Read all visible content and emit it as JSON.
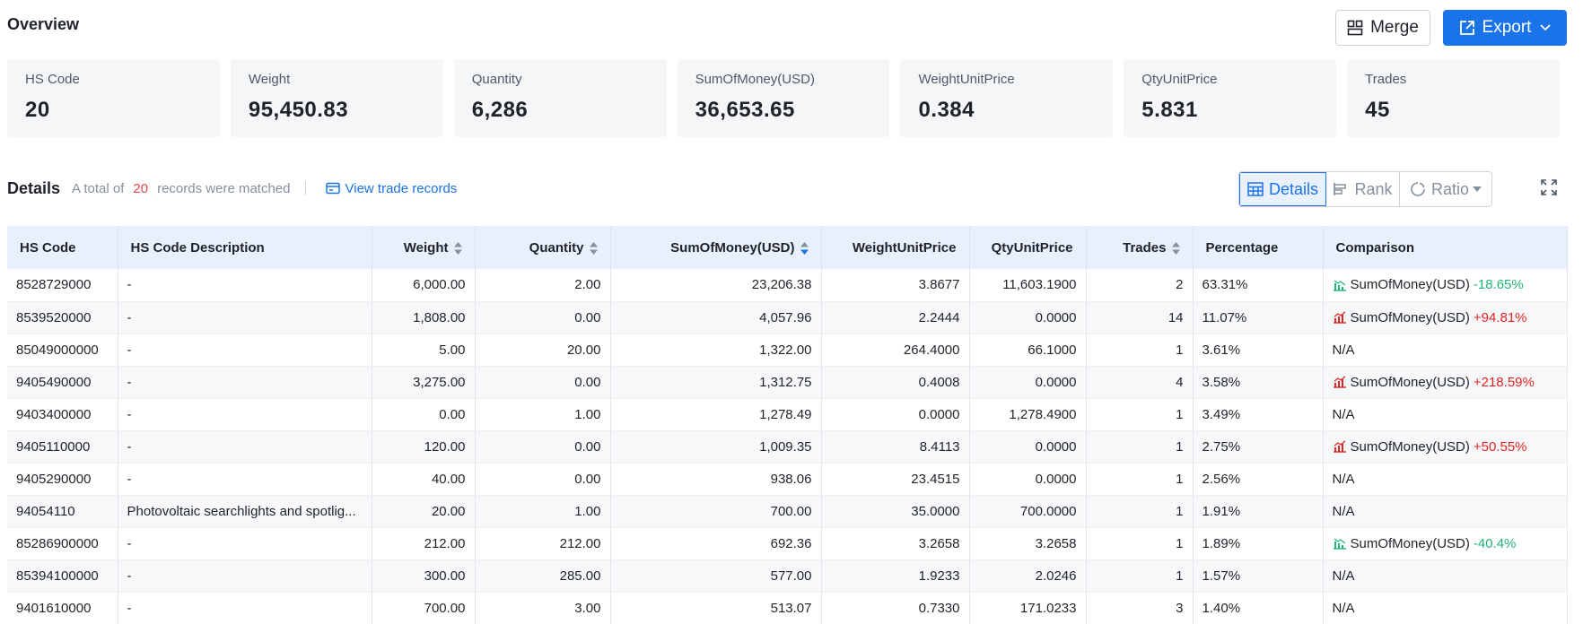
{
  "overview": {
    "title": "Overview",
    "merge_label": "Merge",
    "export_label": "Export"
  },
  "cards": [
    {
      "label": "HS Code",
      "value": "20"
    },
    {
      "label": "Weight",
      "value": "95,450.83"
    },
    {
      "label": "Quantity",
      "value": "6,286"
    },
    {
      "label": "SumOfMoney(USD)",
      "value": "36,653.65"
    },
    {
      "label": "WeightUnitPrice",
      "value": "0.384"
    },
    {
      "label": "QtyUnitPrice",
      "value": "5.831"
    },
    {
      "label": "Trades",
      "value": "45"
    }
  ],
  "details": {
    "title": "Details",
    "prefix": "A total of",
    "count": "20",
    "suffix": "records were matched",
    "view_link": "View trade records",
    "views": {
      "details": "Details",
      "rank": "Rank",
      "ratio": "Ratio"
    }
  },
  "table": {
    "columns": [
      "HS Code",
      "HS Code Description",
      "Weight",
      "Quantity",
      "SumOfMoney(USD)",
      "WeightUnitPrice",
      "QtyUnitPrice",
      "Trades",
      "Percentage",
      "Comparison"
    ],
    "rows": [
      {
        "hs": "8528729000",
        "desc": "-",
        "weight": "6,000.00",
        "qty": "2.00",
        "sum": "23,206.38",
        "wup": "3.8677",
        "qup": "11,603.1900",
        "trades": "2",
        "pct": "63.31%",
        "cmp_label": "SumOfMoney(USD)",
        "cmp_val": "-18.65%",
        "cmp_dir": "down"
      },
      {
        "hs": "8539520000",
        "desc": "-",
        "weight": "1,808.00",
        "qty": "0.00",
        "sum": "4,057.96",
        "wup": "2.2444",
        "qup": "0.0000",
        "trades": "14",
        "pct": "11.07%",
        "cmp_label": "SumOfMoney(USD)",
        "cmp_val": "+94.81%",
        "cmp_dir": "up"
      },
      {
        "hs": "85049000000",
        "desc": "-",
        "weight": "5.00",
        "qty": "20.00",
        "sum": "1,322.00",
        "wup": "264.4000",
        "qup": "66.1000",
        "trades": "1",
        "pct": "3.61%",
        "cmp_label": "N/A",
        "cmp_val": "",
        "cmp_dir": "na"
      },
      {
        "hs": "9405490000",
        "desc": "-",
        "weight": "3,275.00",
        "qty": "0.00",
        "sum": "1,312.75",
        "wup": "0.4008",
        "qup": "0.0000",
        "trades": "4",
        "pct": "3.58%",
        "cmp_label": "SumOfMoney(USD)",
        "cmp_val": "+218.59%",
        "cmp_dir": "up"
      },
      {
        "hs": "9403400000",
        "desc": "-",
        "weight": "0.00",
        "qty": "1.00",
        "sum": "1,278.49",
        "wup": "0.0000",
        "qup": "1,278.4900",
        "trades": "1",
        "pct": "3.49%",
        "cmp_label": "N/A",
        "cmp_val": "",
        "cmp_dir": "na"
      },
      {
        "hs": "9405110000",
        "desc": "-",
        "weight": "120.00",
        "qty": "0.00",
        "sum": "1,009.35",
        "wup": "8.4113",
        "qup": "0.0000",
        "trades": "1",
        "pct": "2.75%",
        "cmp_label": "SumOfMoney(USD)",
        "cmp_val": "+50.55%",
        "cmp_dir": "up"
      },
      {
        "hs": "9405290000",
        "desc": "-",
        "weight": "40.00",
        "qty": "0.00",
        "sum": "938.06",
        "wup": "23.4515",
        "qup": "0.0000",
        "trades": "1",
        "pct": "2.56%",
        "cmp_label": "N/A",
        "cmp_val": "",
        "cmp_dir": "na"
      },
      {
        "hs": "94054110",
        "desc": "Photovoltaic searchlights and spotlig...",
        "weight": "20.00",
        "qty": "1.00",
        "sum": "700.00",
        "wup": "35.0000",
        "qup": "700.0000",
        "trades": "1",
        "pct": "1.91%",
        "cmp_label": "N/A",
        "cmp_val": "",
        "cmp_dir": "na"
      },
      {
        "hs": "85286900000",
        "desc": "-",
        "weight": "212.00",
        "qty": "212.00",
        "sum": "692.36",
        "wup": "3.2658",
        "qup": "3.2658",
        "trades": "1",
        "pct": "1.89%",
        "cmp_label": "SumOfMoney(USD)",
        "cmp_val": "-40.4%",
        "cmp_dir": "down"
      },
      {
        "hs": "85394100000",
        "desc": "-",
        "weight": "300.00",
        "qty": "285.00",
        "sum": "577.00",
        "wup": "1.9233",
        "qup": "2.0246",
        "trades": "1",
        "pct": "1.57%",
        "cmp_label": "N/A",
        "cmp_val": "",
        "cmp_dir": "na"
      },
      {
        "hs": "9401610000",
        "desc": "-",
        "weight": "700.00",
        "qty": "3.00",
        "sum": "513.07",
        "wup": "0.7330",
        "qup": "171.0233",
        "trades": "3",
        "pct": "1.40%",
        "cmp_label": "N/A",
        "cmp_val": "",
        "cmp_dir": "na"
      }
    ]
  },
  "colors": {
    "accent": "#1a73e8",
    "up": "#e02424",
    "down": "#22b573",
    "count": "#e5484d"
  }
}
